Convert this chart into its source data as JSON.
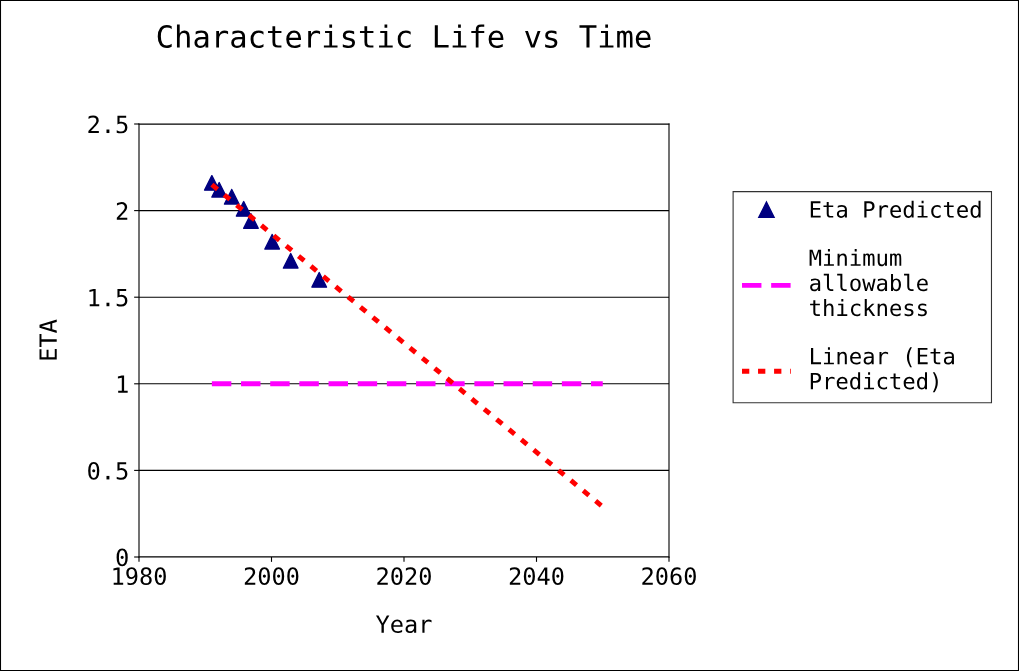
{
  "chart_data": {
    "type": "scatter",
    "title": "Characteristic Life vs Time",
    "xlabel": "Year",
    "ylabel": "ETA",
    "series": [
      {
        "name": "Eta Predicted",
        "color": "#000080",
        "marker": "triangle",
        "x": [
          1991.0,
          1992.1,
          1994.0,
          1995.8,
          1996.9,
          2000.1,
          2002.9,
          2007.2
        ],
        "values": [
          2.16,
          2.12,
          2.08,
          2.01,
          1.94,
          1.82,
          1.71,
          1.6
        ]
      },
      {
        "name": "Minimum allowable thickness",
        "type": "line",
        "color": "#ff00ff",
        "line_style": "dashed",
        "marker": "none",
        "x": [
          1991,
          2050
        ],
        "values": [
          1,
          1
        ]
      },
      {
        "name": "Linear (Eta Predicted)",
        "type": "line",
        "color": "#ff0000",
        "line_style": "dotted",
        "marker": "none",
        "x": [
          1991,
          2050
        ],
        "values": [
          2.15,
          0.29
        ]
      }
    ],
    "xlim": [
      1980,
      2060
    ],
    "xticks": [
      1980,
      2000,
      2020,
      2040,
      2060
    ],
    "ylim": [
      0,
      2.5
    ],
    "yticks": [
      0,
      0.5,
      1,
      1.5,
      2,
      2.5
    ],
    "grid": "y",
    "legend": "right"
  }
}
